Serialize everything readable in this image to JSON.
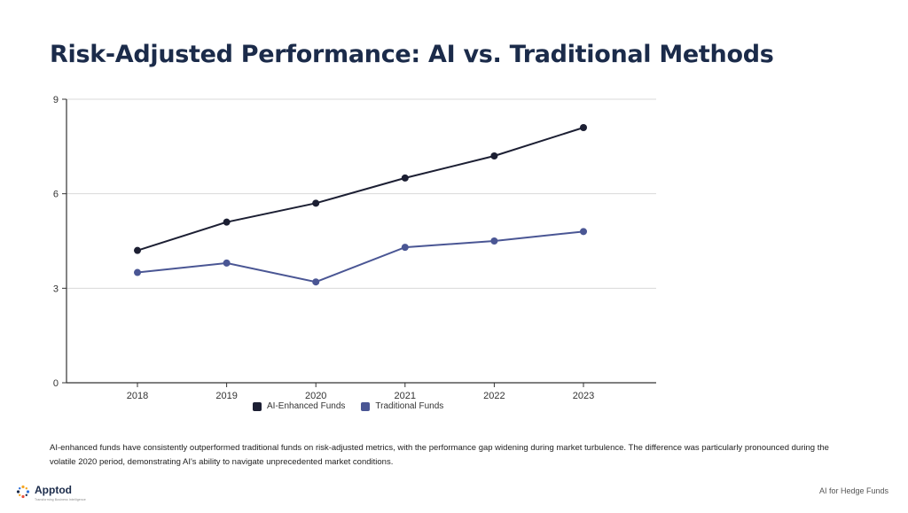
{
  "page": {
    "title": "Risk-Adjusted Performance: AI vs. Traditional Methods",
    "description": "AI-enhanced funds have consistently outperformed traditional funds on risk-adjusted metrics, with the performance gap widening during market turbulence. The difference was particularly pronounced during the volatile 2020 period, demonstrating AI's ability to navigate unprecedented market conditions.",
    "footer_right": "AI for Hedge Funds"
  },
  "brand": {
    "name": "Apptod",
    "tagline": "Transforming Business Intelligence",
    "colors": [
      "#f5a623",
      "#2f6fd6",
      "#1b2b4a",
      "#e94e3c"
    ]
  },
  "colors": {
    "ai_series": "#1c1f33",
    "traditional_series": "#4a5694",
    "grid": "#d9d9d9",
    "axis": "#333333"
  },
  "chart_data": {
    "type": "line",
    "title": "Risk-Adjusted Performance: AI vs. Traditional Methods",
    "xlabel": "",
    "ylabel": "",
    "x": [
      "2018",
      "2019",
      "2020",
      "2021",
      "2022",
      "2023"
    ],
    "ylim": [
      0,
      9
    ],
    "yticks": [
      0,
      3,
      6,
      9
    ],
    "grid": true,
    "legend_position": "bottom",
    "series": [
      {
        "name": "AI-Enhanced Funds",
        "values": [
          4.2,
          5.1,
          5.7,
          6.5,
          7.2,
          8.1
        ],
        "color": "#1c1f33"
      },
      {
        "name": "Traditional Funds",
        "values": [
          3.5,
          3.8,
          3.2,
          4.3,
          4.5,
          4.8
        ],
        "color": "#4a5694"
      }
    ]
  }
}
